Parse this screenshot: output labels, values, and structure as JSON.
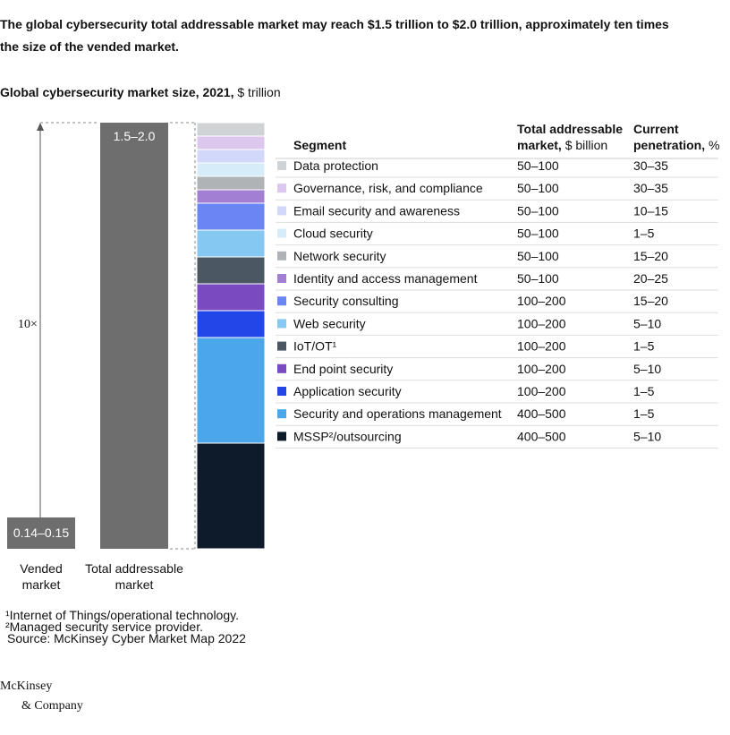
{
  "title": "The global cybersecurity total addressable market may reach $1.5 trillion to $2.0 trillion, approximately ten times the size of the vended market.",
  "subtitle": {
    "bold": "Global cybersecurity market size, 2021,",
    "unit": "$ trillion"
  },
  "multiplier": "10×",
  "vended": {
    "value_label": "0.14–0.15",
    "label": "Vended market"
  },
  "total": {
    "value_label": "1.5–2.0",
    "label": "Total addressable market"
  },
  "table": {
    "headers": {
      "segment": "Segment",
      "tam_bold": "Total addressable",
      "tam_rest_bold": "market,",
      "tam_unit": "$ billion",
      "pen_bold": "Current",
      "pen_rest_bold": "penetration,",
      "pen_unit": "%"
    },
    "rows": [
      {
        "segment": "Data protection",
        "tam": "50–100",
        "penetration": "30–35",
        "color": "#d0d3d6"
      },
      {
        "segment": "Governance, risk, and compliance",
        "tam": "50–100",
        "penetration": "30–35",
        "color": "#dcc8ee"
      },
      {
        "segment": "Email security and awareness",
        "tam": "50–100",
        "penetration": "10–15",
        "color": "#d1d8fa"
      },
      {
        "segment": "Cloud security",
        "tam": "50–100",
        "penetration": "1–5",
        "color": "#d6ecf9"
      },
      {
        "segment": "Network security",
        "tam": "50–100",
        "penetration": "15–20",
        "color": "#b0b3b6"
      },
      {
        "segment": "Identity and access management",
        "tam": "50–100",
        "penetration": "20–25",
        "color": "#a37fd4"
      },
      {
        "segment": "Security consulting",
        "tam": "100–200",
        "penetration": "15–20",
        "color": "#6a86f5"
      },
      {
        "segment": "Web security",
        "tam": "100–200",
        "penetration": "5–10",
        "color": "#85c8f2"
      },
      {
        "segment": "IoT/OT¹",
        "tam": "100–200",
        "penetration": "1–5",
        "color": "#4b5864"
      },
      {
        "segment": "End point security",
        "tam": "100–200",
        "penetration": "5–10",
        "color": "#7a4bc0"
      },
      {
        "segment": "Application security",
        "tam": "100–200",
        "penetration": "1–5",
        "color": "#2147e8"
      },
      {
        "segment": "Security and operations management",
        "tam": "400–500",
        "penetration": "1–5",
        "color": "#4ba6ea"
      },
      {
        "segment": "MSSP²/outsourcing",
        "tam": "400–500",
        "penetration": "5–10",
        "color": "#0e1b2a"
      }
    ]
  },
  "footnotes": [
    "¹Internet of Things/operational technology.",
    "²Managed security service provider.",
    "Source: McKinsey Cyber Market Map 2022"
  ],
  "logo": [
    "McKinsey",
    "& Company"
  ]
}
